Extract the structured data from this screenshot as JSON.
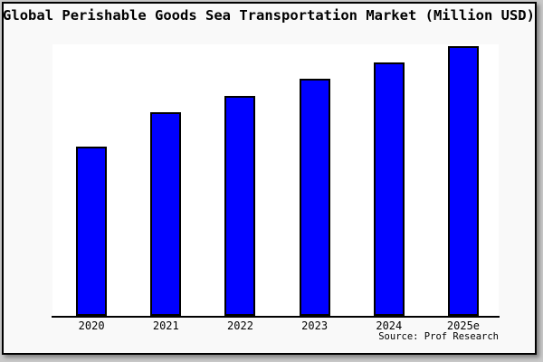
{
  "title": "Global Perishable Goods Sea Transportation Market (Million USD)",
  "source": "Source: Prof Research",
  "colors": {
    "bar": "#0000ff",
    "bar_border": "#000000",
    "frame_border": "#000000",
    "canvas_background": "#f9f9f9",
    "plot_background": "#ffffff",
    "outer_margin": "#c8c8c8",
    "text": "#000000"
  },
  "chart_data": {
    "type": "bar",
    "title": "Global Perishable Goods Sea Transportation Market (Million USD)",
    "categories": [
      "2020",
      "2021",
      "2022",
      "2023",
      "2024",
      "2025e"
    ],
    "values": [
      62.5,
      75,
      81,
      87.5,
      93.5,
      99.5
    ],
    "value_note": "no y-axis ticks or data labels shown; values estimated relative to tallest bar (2025e) = 99.5 on a 0-100 scale",
    "xlabel": "",
    "ylabel": "",
    "ylim": [
      0,
      100
    ],
    "grid": false,
    "legend": false,
    "annotation": "Source: Prof Research"
  }
}
